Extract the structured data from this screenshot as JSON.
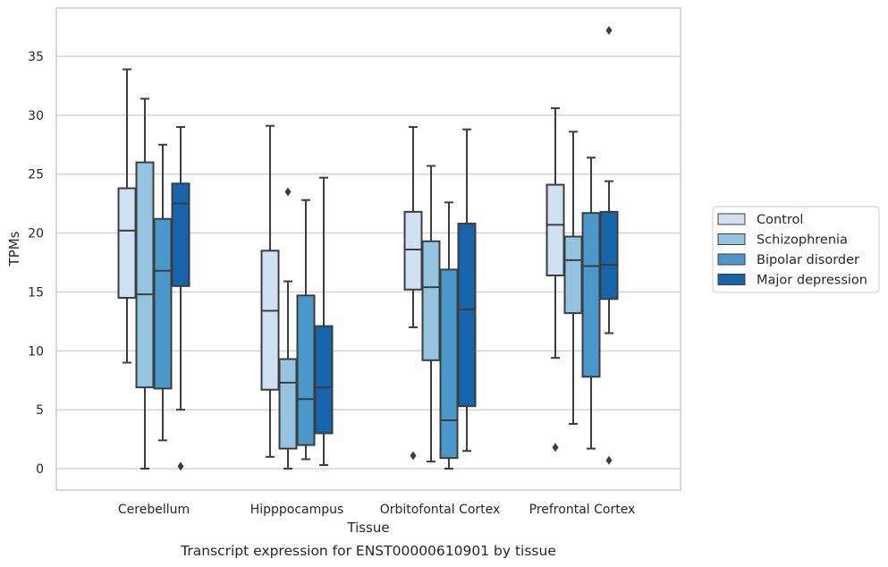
{
  "caption": "Transcript expression for ENST00000610901 by tissue",
  "chart_data": {
    "type": "box",
    "xlabel": "Tissue",
    "ylabel": "TPMs",
    "ylim": [
      -1.8,
      39
    ],
    "yticks": [
      0,
      5,
      10,
      15,
      20,
      25,
      30,
      35
    ],
    "grid": true,
    "legend_position": "right",
    "categories": [
      "Cerebellum",
      "Hipppocampus",
      "Orbitofontal Cortex",
      "Prefrontal Cortex"
    ],
    "series": [
      {
        "name": "Control",
        "color": "#d0e1f2",
        "boxes": [
          {
            "whislo": 9.0,
            "q1": 14.5,
            "med": 20.2,
            "q3": 23.8,
            "whishi": 33.9,
            "fliers": []
          },
          {
            "whislo": 1.0,
            "q1": 6.7,
            "med": 13.4,
            "q3": 18.5,
            "whishi": 29.1,
            "fliers": []
          },
          {
            "whislo": 12.0,
            "q1": 15.2,
            "med": 18.6,
            "q3": 21.8,
            "whishi": 29.0,
            "fliers": [
              1.1
            ]
          },
          {
            "whislo": 9.4,
            "q1": 16.4,
            "med": 20.7,
            "q3": 24.1,
            "whishi": 30.6,
            "fliers": [
              1.8
            ]
          }
        ]
      },
      {
        "name": "Schizophrenia",
        "color": "#94c4df",
        "boxes": [
          {
            "whislo": 0.0,
            "q1": 6.9,
            "med": 14.8,
            "q3": 26.0,
            "whishi": 31.4,
            "fliers": []
          },
          {
            "whislo": 0.0,
            "q1": 1.7,
            "med": 7.3,
            "q3": 9.3,
            "whishi": 15.9,
            "fliers": [
              23.5
            ]
          },
          {
            "whislo": 0.6,
            "q1": 9.2,
            "med": 15.4,
            "q3": 19.3,
            "whishi": 25.7,
            "fliers": []
          },
          {
            "whislo": 3.8,
            "q1": 13.2,
            "med": 17.7,
            "q3": 19.7,
            "whishi": 28.6,
            "fliers": []
          }
        ]
      },
      {
        "name": "Bipolar disorder",
        "color": "#4a98c9",
        "boxes": [
          {
            "whislo": 2.4,
            "q1": 6.8,
            "med": 16.8,
            "q3": 21.2,
            "whishi": 27.5,
            "fliers": []
          },
          {
            "whislo": 0.8,
            "q1": 2.0,
            "med": 5.9,
            "q3": 14.7,
            "whishi": 22.8,
            "fliers": []
          },
          {
            "whislo": 0.0,
            "q1": 0.9,
            "med": 4.1,
            "q3": 16.9,
            "whishi": 22.6,
            "fliers": []
          },
          {
            "whislo": 1.7,
            "q1": 7.8,
            "med": 17.2,
            "q3": 21.7,
            "whishi": 26.4,
            "fliers": []
          }
        ]
      },
      {
        "name": "Major depression",
        "color": "#1764ab",
        "boxes": [
          {
            "whislo": 5.0,
            "q1": 15.5,
            "med": 22.5,
            "q3": 24.2,
            "whishi": 29.0,
            "fliers": [
              0.2
            ]
          },
          {
            "whislo": 0.3,
            "q1": 3.0,
            "med": 6.9,
            "q3": 12.1,
            "whishi": 24.7,
            "fliers": []
          },
          {
            "whislo": 1.5,
            "q1": 5.3,
            "med": 13.5,
            "q3": 20.8,
            "whishi": 28.8,
            "fliers": []
          },
          {
            "whislo": 11.5,
            "q1": 14.4,
            "med": 17.3,
            "q3": 21.8,
            "whishi": 24.4,
            "fliers": [
              0.7,
              37.2
            ]
          }
        ]
      }
    ]
  }
}
